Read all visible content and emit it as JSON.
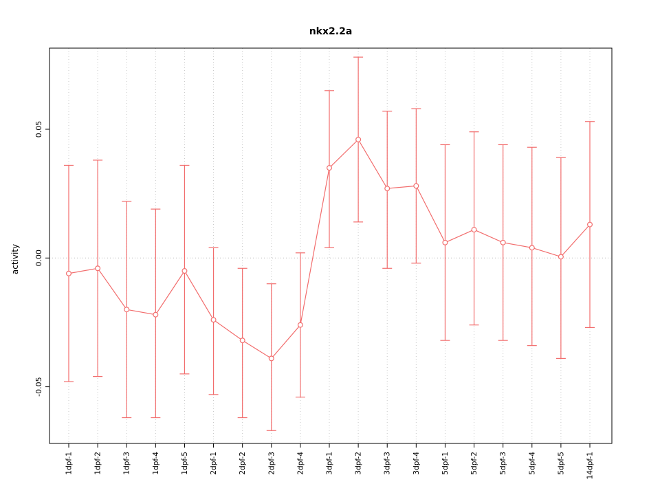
{
  "title": "nkx2.2a",
  "accent_color": "#f26d6d",
  "chart_data": {
    "type": "line",
    "title": "nkx2.2a",
    "xlabel": "",
    "ylabel": "activity",
    "categories": [
      "1dpf-1",
      "1dpf-2",
      "1dpf-3",
      "1dpf-4",
      "1dpf-5",
      "2dpf-1",
      "2dpf-2",
      "2dpf-3",
      "2dpf-4",
      "3dpf-1",
      "3dpf-2",
      "3dpf-3",
      "3dpf-4",
      "5dpf-1",
      "5dpf-2",
      "5dpf-3",
      "5dpf-4",
      "5dpf-5",
      "14dpf-1"
    ],
    "series": [
      {
        "name": "activity",
        "values": [
          -0.006,
          -0.004,
          -0.02,
          -0.022,
          -0.005,
          -0.024,
          -0.032,
          -0.039,
          -0.026,
          0.035,
          0.046,
          0.027,
          0.028,
          0.006,
          0.011,
          0.006,
          0.004,
          0.0005,
          0.013
        ],
        "error_upper": [
          0.036,
          0.038,
          0.022,
          0.019,
          0.036,
          0.004,
          -0.004,
          -0.01,
          0.002,
          0.065,
          0.078,
          0.057,
          0.058,
          0.044,
          0.049,
          0.044,
          0.043,
          0.039,
          0.053
        ],
        "error_lower": [
          -0.048,
          -0.046,
          -0.062,
          -0.062,
          -0.045,
          -0.053,
          -0.062,
          -0.067,
          -0.054,
          0.004,
          0.014,
          -0.004,
          -0.002,
          -0.032,
          -0.026,
          -0.032,
          -0.034,
          -0.039,
          -0.027
        ]
      }
    ],
    "yticks": [
      "-0.05",
      "0.00",
      "0.05"
    ],
    "ytick_values": [
      -0.05,
      0.0,
      0.05
    ],
    "ylim": [
      -0.072,
      0.0815
    ],
    "grid": "dotted vertical gridline at each category, dotted horizontal line at zero",
    "legend": "none",
    "point_style": "open-circle",
    "line_color": "#f26d6d",
    "grid_color": "#c8c8c8",
    "zero_line_color": "#bbbbbb",
    "border_color": "#000000"
  }
}
